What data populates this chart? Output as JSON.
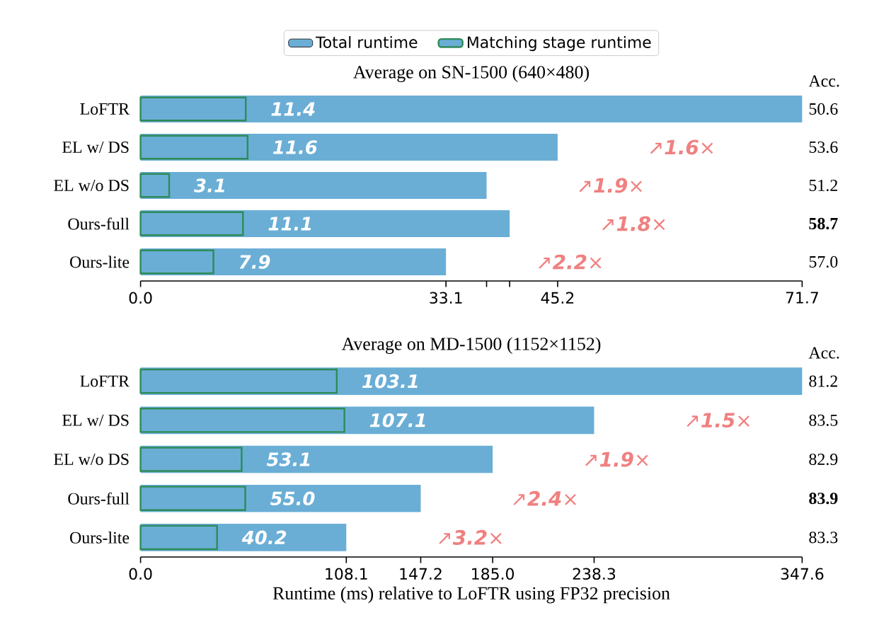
{
  "chart_data": [
    {
      "type": "bar",
      "orientation": "horizontal",
      "title": "Average on SN-1500 (640×480)",
      "categories": [
        "LoFTR",
        "EL w/ DS",
        "EL w/o DS",
        "Ours-full",
        "Ours-lite"
      ],
      "series": [
        {
          "name": "Total runtime",
          "color": "#6aaed6",
          "values": [
            71.7,
            45.2,
            37.5,
            40.0,
            33.1
          ]
        },
        {
          "name": "Matching stage runtime",
          "color": "#2e8b57",
          "values": [
            11.4,
            11.6,
            3.1,
            11.1,
            7.9
          ],
          "value_labels": [
            "11.4",
            "11.6",
            "3.1",
            "11.1",
            "7.9"
          ]
        }
      ],
      "xlim": [
        0,
        71.7
      ],
      "xticks": [
        {
          "value": 0,
          "label": "0.0"
        },
        33.1,
        {
          "value": 37.5,
          "label": null
        },
        {
          "value": 40.0,
          "label": null
        },
        45.2,
        71.7
      ],
      "legend": "top",
      "annotations": [
        "Acc.",
        "50.6",
        "53.6",
        "51.2",
        "**58.7**",
        "57.0",
        "↗**1.6**×",
        "↗**1.9**×",
        "↗**1.8**×",
        "↗**2.2**×"
      ]
    },
    {
      "type": "bar",
      "orientation": "horizontal",
      "title": "Average on MD-1500 (1152×1152)",
      "xlabel": "Runtime (ms) relative to LoFTR using FP32 precision",
      "categories": [
        "LoFTR",
        "EL w/ DS",
        "EL w/o DS",
        "Ours-full",
        "Ours-lite"
      ],
      "series": [
        {
          "color": "#6aaed6",
          "values": [
            347.6,
            238.3,
            185.0,
            147.2,
            108.1
          ]
        },
        {
          "color": "#2e8b57",
          "values": [
            103.1,
            107.1,
            53.1,
            55.0,
            40.2
          ],
          "value_labels": [
            "103.1",
            "107.1",
            "53.1",
            "55.0",
            "40.2"
          ]
        }
      ],
      "xlim": [
        0,
        347.6
      ],
      "xticks": [
        {
          "value": 0,
          "label": "0.0"
        },
        108.1,
        147.2,
        {
          "value": 185.0,
          "label": "185.0"
        },
        238.3,
        347.6
      ],
      "annotations": [
        "Acc.",
        "81.2",
        "83.5",
        "82.9",
        "**83.9**",
        "83.3",
        "↗**1.5**×",
        "↗**1.9**×",
        "↗**2.4**×",
        "↗**3.2**×"
      ]
    }
  ]
}
